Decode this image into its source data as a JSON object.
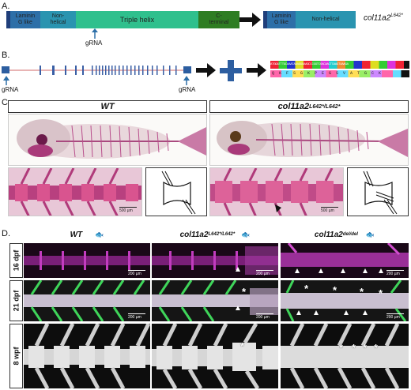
{
  "panels": {
    "a": "A.",
    "b": "B.",
    "c": "C.",
    "d": "D."
  },
  "panel_a": {
    "domains": [
      {
        "label": "Laminin\nG like"
      },
      {
        "label": "Non-\nhelical"
      },
      {
        "label": "Triple helix"
      },
      {
        "label": "C-\nterminal"
      }
    ],
    "mut_domains": [
      {
        "label": "Laminin\nG like"
      },
      {
        "label": "Non-helical"
      }
    ],
    "grna": "gRNA",
    "gene_name": "col11a2",
    "gene_sup": "L642*",
    "colors": {
      "dark": "#1f3e7a",
      "laminin": "#2d6fa8",
      "nonhelical": "#2a94b0",
      "triple": "#2fc08d",
      "cterm": "#2e7d22"
    }
  },
  "panel_b": {
    "grna_left": "gRNA",
    "grna_right": "gRNA",
    "sequence_top": "ATGGATTTGCAAATAAAGGGAAGCCCGGTCGACAACTCAAGTAAAGA",
    "sequence_bottom": "Q  K  F  S  G  K  P  E  G  S  V  A  T  G  C  K"
  },
  "panel_c": {
    "wt": "WT",
    "mut_name": "col11a2",
    "mut_sup": "L642*/L642*",
    "scale_left": "500 µm",
    "scale_right": "500 µm"
  },
  "panel_d": {
    "col1": "WT",
    "col2_name": "col11a2",
    "col2_sup": "L642*/L642*",
    "col3_name": "col11a2",
    "col3_sup": "del/del",
    "rows": [
      "16 dpf",
      "21 dpf",
      "8 wpf"
    ],
    "scale": "200 µm"
  }
}
